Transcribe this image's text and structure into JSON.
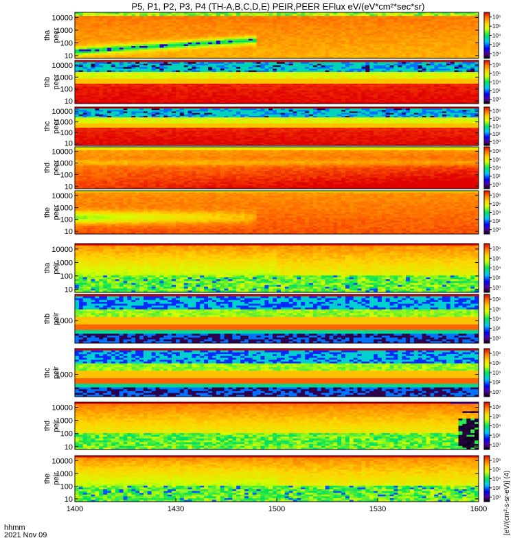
{
  "title": "P5, P1, P2, P3, P4 (TH-A,B,C,D,E) PEIR,PEER EFlux eV/(eV*cm²*sec*sr)",
  "footer": {
    "time_label": "hhmm",
    "date_label": "2021 Nov 09"
  },
  "colorbar_unit": "[eV/(cm²-s-sr-eV)] (4)",
  "chart_data": {
    "type": "heatmap",
    "x_ticks": [
      "1400",
      "1430",
      "1500",
      "1530",
      "1600"
    ],
    "xlim_minutes": [
      0,
      120
    ],
    "colorbar_ticks": [
      "10⁰",
      "10²",
      "10⁴",
      "10⁶",
      "10⁸"
    ],
    "panels": [
      {
        "name": "tha peer",
        "label1": "tha",
        "label2": "peer",
        "yticks": [
          "10",
          "100",
          "1000",
          "10000"
        ],
        "ymin": 6,
        "ymax": 25000,
        "pattern": "tha_peer"
      },
      {
        "name": "thb peer",
        "label1": "thb",
        "label2": "peer",
        "yticks": [
          "10",
          "100",
          "1000",
          "10000"
        ],
        "ymin": 6,
        "ymax": 25000,
        "pattern": "thb_peer"
      },
      {
        "name": "thc peer",
        "label1": "thc",
        "label2": "peer",
        "yticks": [
          "10",
          "100",
          "1000",
          "10000"
        ],
        "ymin": 6,
        "ymax": 25000,
        "pattern": "thc_peer"
      },
      {
        "name": "thd peer",
        "label1": "thd",
        "label2": "peer",
        "yticks": [
          "10",
          "100",
          "1000",
          "10000"
        ],
        "ymin": 6,
        "ymax": 25000,
        "pattern": "thd_peer"
      },
      {
        "name": "the peer",
        "label1": "the",
        "label2": "peer",
        "yticks": [
          "10",
          "100",
          "1000",
          "10000"
        ],
        "ymin": 6,
        "ymax": 25000,
        "pattern": "the_peer"
      },
      {
        "name": "tha peir",
        "label1": "tha",
        "label2": "peir",
        "yticks": [
          "10",
          "100",
          "1000",
          "10000"
        ],
        "ymin": 6,
        "ymax": 25000,
        "pattern": "peir"
      },
      {
        "name": "thb peir",
        "label1": "thb",
        "label2": "peir",
        "yticks": [
          "1000"
        ],
        "ymin": 250,
        "ymax": 5000,
        "pattern": "narrow"
      },
      {
        "name": "thc peir",
        "label1": "thc",
        "label2": "peir",
        "yticks": [
          "1000"
        ],
        "ymin": 250,
        "ymax": 5000,
        "pattern": "narrow"
      },
      {
        "name": "thd peir",
        "label1": "thd",
        "label2": "peir",
        "yticks": [
          "10",
          "100",
          "1000",
          "10000"
        ],
        "ymin": 6,
        "ymax": 25000,
        "pattern": "thd_peir"
      },
      {
        "name": "the peir",
        "label1": "the",
        "label2": "peir",
        "yticks": [
          "10",
          "100",
          "1000",
          "10000"
        ],
        "ymin": 6,
        "ymax": 25000,
        "pattern": "peir"
      }
    ]
  }
}
